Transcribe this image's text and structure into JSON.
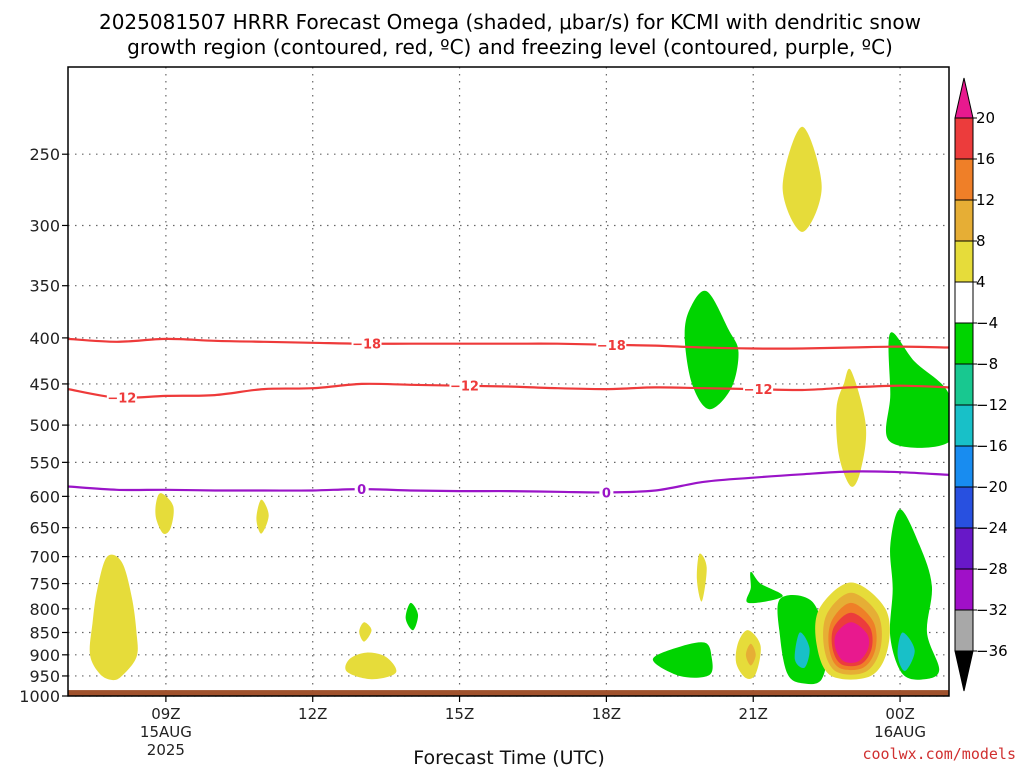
{
  "chart_data": {
    "type": "time-height contour",
    "title_line1": "2025081507 HRRR Forecast Omega (shaded, μbar/s) for KCMI with dendritic snow",
    "title_line2": "growth region (contoured, red, ºC) and freezing level (contoured, purple, ºC)",
    "xlabel": "Forecast Time (UTC)",
    "credit": "coolwx.com/models",
    "x_ticks": [
      {
        "hour": 9,
        "label": "09Z",
        "date": "15AUG",
        "year": "2025"
      },
      {
        "hour": 12,
        "label": "12Z"
      },
      {
        "hour": 15,
        "label": "15Z"
      },
      {
        "hour": 18,
        "label": "18Z"
      },
      {
        "hour": 21,
        "label": "21Z"
      },
      {
        "hour": 24,
        "label": "00Z",
        "date": "16AUG"
      }
    ],
    "xlim_hours": [
      7,
      25
    ],
    "y_ticks": [
      250,
      300,
      350,
      400,
      450,
      500,
      550,
      600,
      650,
      700,
      750,
      800,
      850,
      900,
      950,
      1000
    ],
    "ylim_hpa": [
      1000,
      200
    ],
    "y_scale": "log-pressure",
    "grid": "dotted",
    "colorbar": {
      "levels": [
        "20",
        "16",
        "12",
        "8",
        "4",
        "−4",
        "−8",
        "−12",
        "−16",
        "−20",
        "−24",
        "−28",
        "−32",
        "−36"
      ],
      "colors": [
        "#e8198e",
        "#ec3c3c",
        "#ef7f28",
        "#e6ae35",
        "#e6dc3a",
        "#ffffff",
        "#00d400",
        "#18c890",
        "#18c0c8",
        "#188cf0",
        "#2850e0",
        "#6818c8",
        "#a010c8",
        "#a8a8a8",
        "#000000"
      ]
    },
    "dgz_contours": [
      {
        "level": -18,
        "label": "−18",
        "color": "#ee3a3a",
        "points": [
          [
            7.0,
            401
          ],
          [
            8.0,
            404
          ],
          [
            9.0,
            401
          ],
          [
            10.0,
            403
          ],
          [
            11.0,
            404
          ],
          [
            12.0,
            405
          ],
          [
            13.0,
            406
          ],
          [
            14.0,
            406
          ],
          [
            15.0,
            406
          ],
          [
            16.0,
            406
          ],
          [
            17.0,
            406
          ],
          [
            18.0,
            407
          ],
          [
            19.0,
            408
          ],
          [
            20.0,
            410
          ],
          [
            21.0,
            411
          ],
          [
            22.0,
            411
          ],
          [
            23.0,
            410
          ],
          [
            24.0,
            409
          ],
          [
            25.0,
            410
          ]
        ],
        "labels_at": [
          13.1,
          18.1
        ]
      },
      {
        "level": -12,
        "label": "−12",
        "color": "#ee3a3a",
        "points": [
          [
            7.0,
            456
          ],
          [
            8.0,
            466
          ],
          [
            9.0,
            464
          ],
          [
            10.0,
            463
          ],
          [
            11.0,
            456
          ],
          [
            12.0,
            455
          ],
          [
            13.0,
            450
          ],
          [
            14.0,
            451
          ],
          [
            15.0,
            452
          ],
          [
            16.0,
            453
          ],
          [
            17.0,
            455
          ],
          [
            18.0,
            456
          ],
          [
            19.0,
            454
          ],
          [
            20.0,
            455
          ],
          [
            21.0,
            456
          ],
          [
            22.0,
            457
          ],
          [
            23.0,
            454
          ],
          [
            24.0,
            452
          ],
          [
            25.0,
            454
          ]
        ],
        "labels_at": [
          8.1,
          15.1,
          21.1
        ]
      }
    ],
    "freezing_level": {
      "level": 0,
      "label": "0",
      "color": "#9a14c8",
      "points": [
        [
          7.0,
          585
        ],
        [
          8.0,
          590
        ],
        [
          9.0,
          590
        ],
        [
          10.0,
          591
        ],
        [
          11.0,
          591
        ],
        [
          12.0,
          591
        ],
        [
          13.0,
          589
        ],
        [
          14.0,
          591
        ],
        [
          15.0,
          592
        ],
        [
          16.0,
          592
        ],
        [
          17.0,
          593
        ],
        [
          18.0,
          594
        ],
        [
          19.0,
          591
        ],
        [
          20.0,
          578
        ],
        [
          21.0,
          572
        ],
        [
          22.0,
          567
        ],
        [
          23.0,
          563
        ],
        [
          24.0,
          564
        ],
        [
          25.0,
          568
        ]
      ],
      "labels_at": [
        13.0,
        18.0
      ]
    },
    "omega_regions": [
      {
        "level": 4,
        "color": "#e6dc3a",
        "points": [
          [
            7.8,
            700
          ],
          [
            8.1,
            710
          ],
          [
            8.3,
            775
          ],
          [
            8.4,
            850
          ],
          [
            8.4,
            905
          ],
          [
            8.1,
            950
          ],
          [
            7.9,
            960
          ],
          [
            7.65,
            945
          ],
          [
            7.45,
            900
          ],
          [
            7.5,
            830
          ],
          [
            7.6,
            760
          ]
        ]
      },
      {
        "level": 4,
        "color": "#e6dc3a",
        "points": [
          [
            8.9,
            595
          ],
          [
            9.15,
            615
          ],
          [
            9.1,
            650
          ],
          [
            8.95,
            660
          ],
          [
            8.8,
            635
          ],
          [
            8.8,
            610
          ]
        ]
      },
      {
        "level": 4,
        "color": "#e6dc3a",
        "points": [
          [
            10.95,
            605
          ],
          [
            11.1,
            630
          ],
          [
            10.95,
            660
          ],
          [
            10.85,
            635
          ]
        ]
      },
      {
        "level": 4,
        "color": "#e6dc3a",
        "points": [
          [
            13.05,
            828
          ],
          [
            13.2,
            845
          ],
          [
            13.05,
            870
          ],
          [
            12.95,
            848
          ]
        ]
      },
      {
        "level": 4,
        "color": "#e6dc3a",
        "points": [
          [
            13.1,
            895
          ],
          [
            13.5,
            905
          ],
          [
            13.7,
            942
          ],
          [
            13.2,
            958
          ],
          [
            12.7,
            940
          ],
          [
            12.75,
            910
          ]
        ]
      },
      {
        "level": -4,
        "color": "#00d400",
        "points": [
          [
            14.0,
            788
          ],
          [
            14.15,
            812
          ],
          [
            14.05,
            845
          ],
          [
            13.9,
            820
          ]
        ]
      },
      {
        "level": -4,
        "color": "#00d400",
        "points": [
          [
            19.4,
            885
          ],
          [
            20.0,
            872
          ],
          [
            20.15,
            905
          ],
          [
            20.1,
            948
          ],
          [
            19.5,
            950
          ],
          [
            18.95,
            912
          ]
        ]
      },
      {
        "level": 4,
        "color": "#e6dc3a",
        "points": [
          [
            19.9,
            695
          ],
          [
            20.05,
            720
          ],
          [
            19.95,
            785
          ],
          [
            19.85,
            742
          ]
        ]
      },
      {
        "level": 4,
        "color": "#e6dc3a",
        "points": [
          [
            20.9,
            845
          ],
          [
            21.15,
            880
          ],
          [
            21.05,
            945
          ],
          [
            20.85,
            955
          ],
          [
            20.65,
            918
          ],
          [
            20.7,
            870
          ]
        ]
      },
      {
        "level": 8,
        "color": "#e6ae35",
        "points": [
          [
            20.95,
            875
          ],
          [
            21.05,
            900
          ],
          [
            20.95,
            925
          ],
          [
            20.85,
            900
          ]
        ]
      },
      {
        "level": -4,
        "color": "#00d400",
        "points": [
          [
            20.95,
            728
          ],
          [
            21.15,
            750
          ],
          [
            21.6,
            775
          ],
          [
            20.9,
            788
          ],
          [
            20.95,
            758
          ]
        ]
      },
      {
        "level": -4,
        "color": "#00d400",
        "points": [
          [
            21.55,
            780
          ],
          [
            22.2,
            785
          ],
          [
            22.5,
            875
          ],
          [
            22.4,
            958
          ],
          [
            22.0,
            968
          ],
          [
            21.7,
            945
          ],
          [
            21.55,
            860
          ]
        ]
      },
      {
        "level": -12,
        "color": "#18c0c8",
        "points": [
          [
            21.95,
            850
          ],
          [
            22.15,
            885
          ],
          [
            22.05,
            930
          ],
          [
            21.85,
            910
          ]
        ]
      },
      {
        "level": 4,
        "color": "#e6dc3a",
        "points": [
          [
            22.0,
            233
          ],
          [
            22.4,
            272
          ],
          [
            22.0,
            305
          ],
          [
            21.6,
            272
          ]
        ]
      },
      {
        "level": -4,
        "color": "#00d400",
        "points": [
          [
            20.05,
            355
          ],
          [
            20.5,
            392
          ],
          [
            20.7,
            415
          ],
          [
            20.55,
            455
          ],
          [
            20.1,
            480
          ],
          [
            19.75,
            450
          ],
          [
            19.6,
            400
          ],
          [
            19.7,
            372
          ]
        ]
      },
      {
        "level": 4,
        "color": "#e6dc3a",
        "points": [
          [
            23.0,
            435
          ],
          [
            23.3,
            500
          ],
          [
            23.2,
            560
          ],
          [
            23.0,
            585
          ],
          [
            22.75,
            540
          ],
          [
            22.7,
            480
          ],
          [
            22.85,
            450
          ]
        ]
      },
      {
        "level": -4,
        "color": "#00d400",
        "points": [
          [
            23.8,
            395
          ],
          [
            24.3,
            425
          ],
          [
            25.0,
            462
          ],
          [
            25.0,
            522
          ],
          [
            23.8,
            522
          ],
          [
            23.8,
            462
          ]
        ]
      },
      {
        "level": -4,
        "color": "#00d400",
        "points": [
          [
            24.0,
            620
          ],
          [
            24.4,
            680
          ],
          [
            24.65,
            755
          ],
          [
            24.55,
            850
          ],
          [
            24.8,
            935
          ],
          [
            24.5,
            958
          ],
          [
            24.05,
            945
          ],
          [
            23.8,
            860
          ],
          [
            23.85,
            760
          ],
          [
            23.8,
            680
          ]
        ]
      },
      {
        "level": -12,
        "color": "#18c0c8",
        "points": [
          [
            24.05,
            850
          ],
          [
            24.3,
            890
          ],
          [
            24.1,
            938
          ],
          [
            23.95,
            900
          ]
        ]
      },
      {
        "level": 4,
        "color": "#e6dc3a",
        "points": [
          [
            23.0,
            748
          ],
          [
            23.7,
            800
          ],
          [
            23.75,
            885
          ],
          [
            23.4,
            950
          ],
          [
            22.6,
            950
          ],
          [
            22.3,
            880
          ],
          [
            22.35,
            800
          ]
        ]
      },
      {
        "level": 8,
        "color": "#e6ae35",
        "points": [
          [
            23.0,
            768
          ],
          [
            23.55,
            812
          ],
          [
            23.6,
            885
          ],
          [
            23.3,
            940
          ],
          [
            22.7,
            940
          ],
          [
            22.45,
            885
          ],
          [
            22.5,
            812
          ]
        ]
      },
      {
        "level": 12,
        "color": "#ef7f28",
        "points": [
          [
            23.0,
            788
          ],
          [
            23.45,
            826
          ],
          [
            23.5,
            885
          ],
          [
            23.25,
            930
          ],
          [
            22.75,
            930
          ],
          [
            22.55,
            885
          ],
          [
            22.6,
            826
          ]
        ]
      },
      {
        "level": 16,
        "color": "#ec3c3c",
        "points": [
          [
            23.0,
            808
          ],
          [
            23.38,
            838
          ],
          [
            23.42,
            885
          ],
          [
            23.2,
            922
          ],
          [
            22.8,
            922
          ],
          [
            22.62,
            885
          ],
          [
            22.65,
            838
          ]
        ]
      },
      {
        "level": 20,
        "color": "#e8198e",
        "points": [
          [
            23.0,
            828
          ],
          [
            23.32,
            852
          ],
          [
            23.35,
            885
          ],
          [
            23.15,
            915
          ],
          [
            22.85,
            915
          ],
          [
            22.68,
            885
          ],
          [
            22.7,
            852
          ]
        ]
      }
    ],
    "terrain_below_hpa": 985,
    "terrain_color": "#a0522d"
  }
}
